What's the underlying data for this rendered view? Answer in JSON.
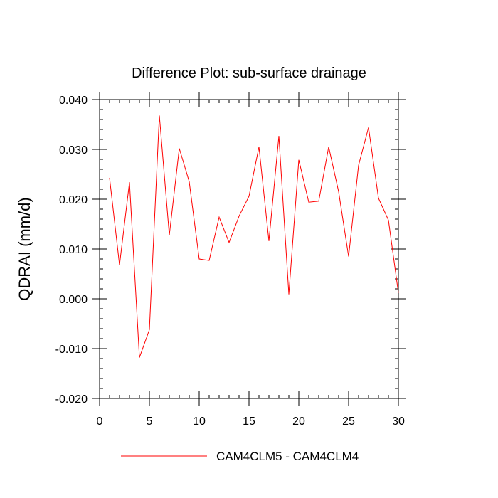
{
  "chart_data": {
    "type": "line",
    "title": "Difference Plot: sub-surface drainage",
    "xlabel": "",
    "ylabel": "QDRAI  (mm/d)",
    "xlim": [
      0,
      30
    ],
    "ylim": [
      -0.02,
      0.04
    ],
    "x_ticks": [
      0,
      5,
      10,
      15,
      20,
      25,
      30
    ],
    "y_ticks": [
      -0.02,
      -0.01,
      0.0,
      0.01,
      0.02,
      0.03,
      0.04
    ],
    "x_tick_labels": [
      "0",
      "5",
      "10",
      "15",
      "20",
      "25",
      "30"
    ],
    "y_tick_labels": [
      "-0.020",
      "-0.010",
      "0.000",
      "0.010",
      "0.020",
      "0.030",
      "0.040"
    ],
    "grid": false,
    "legend_position": "bottom-center",
    "series": [
      {
        "name": "CAM4CLM5 - CAM4CLM4",
        "color": "#ff0000",
        "x": [
          1,
          2,
          3,
          4,
          5,
          6,
          7,
          8,
          9,
          10,
          11,
          12,
          13,
          14,
          15,
          16,
          17,
          18,
          19,
          20,
          21,
          22,
          23,
          24,
          25,
          26,
          27,
          28,
          29,
          30
        ],
        "y": [
          0.0243,
          0.0068,
          0.0234,
          -0.0118,
          -0.0062,
          0.0368,
          0.0128,
          0.0302,
          0.0235,
          0.008,
          0.0077,
          0.0164,
          0.0113,
          0.0166,
          0.0206,
          0.0305,
          0.0116,
          0.0327,
          0.0009,
          0.0279,
          0.0194,
          0.0196,
          0.0305,
          0.0215,
          0.0085,
          0.0268,
          0.0344,
          0.0202,
          0.0158,
          0.0012
        ]
      }
    ]
  }
}
